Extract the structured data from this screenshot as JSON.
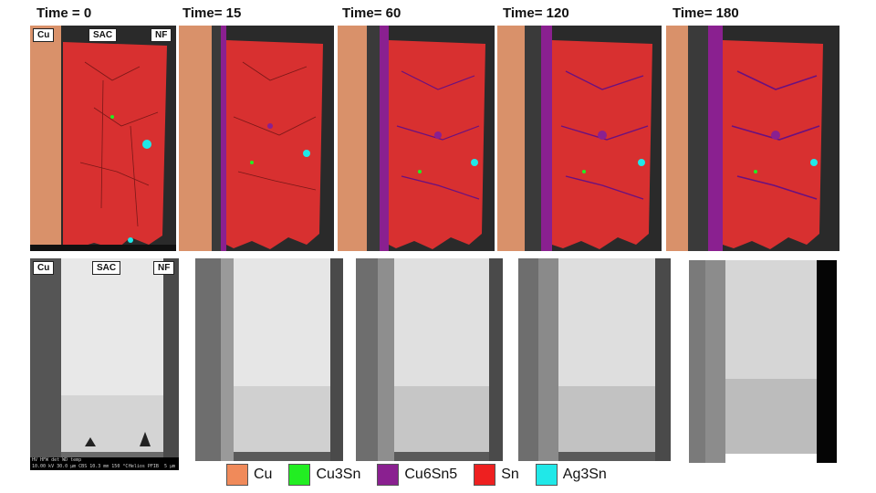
{
  "time_labels": [
    "Time = 0",
    "Time= 15",
    "Time= 60",
    "Time= 120",
    "Time= 180"
  ],
  "region_tags": {
    "cu": "Cu",
    "sac": "SAC",
    "nf": "NF"
  },
  "sem_info": {
    "line1": "HV     HFW     det   WD      temp",
    "line2": "10.00 kV 30.0 µm CBS 10.3 mm 150 °C",
    "scale": "5 µm",
    "brand": "Helios PFIB"
  },
  "legend": [
    {
      "label": "Cu",
      "color": "#f08a5a"
    },
    {
      "label": "Cu3Sn",
      "color": "#22ee22"
    },
    {
      "label": "Cu6Sn5",
      "color": "#8a2090"
    },
    {
      "label": "Sn",
      "color": "#ee2020"
    },
    {
      "label": "Ag3Sn",
      "color": "#20e8e8"
    }
  ],
  "colors": {
    "cu_map": "#d9916a",
    "sn_map": "#d83030",
    "noise": "#2a2a2a"
  }
}
